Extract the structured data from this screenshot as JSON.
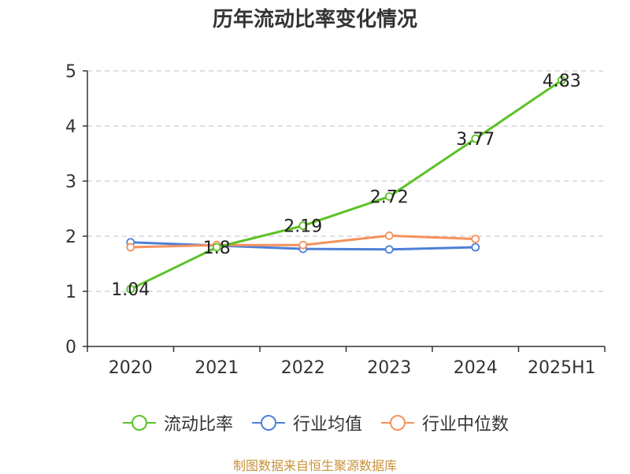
{
  "chart_data": {
    "type": "line",
    "title": "历年流动比率变化情况",
    "categories": [
      "2020",
      "2021",
      "2022",
      "2023",
      "2024",
      "2025H1"
    ],
    "ylim": [
      0,
      5
    ],
    "yticks": [
      "0",
      "1",
      "2",
      "3",
      "4",
      "5"
    ],
    "grid": true,
    "legend_position": "bottom",
    "series": [
      {
        "name": "流动比率",
        "color": "#5cc126",
        "values": [
          1.04,
          1.8,
          2.19,
          2.72,
          3.77,
          4.83
        ],
        "labels": [
          "1.04",
          "1.8",
          "2.19",
          "2.72",
          "3.77",
          "4.83"
        ]
      },
      {
        "name": "行业均值",
        "color": "#4e7fd8",
        "values": [
          1.89,
          1.83,
          1.77,
          1.76,
          1.8,
          null
        ]
      },
      {
        "name": "行业中位数",
        "color": "#f5915b",
        "values": [
          1.8,
          1.84,
          1.84,
          2.01,
          1.95,
          null
        ]
      }
    ],
    "source": "制图数据来自恒生聚源数据库"
  }
}
